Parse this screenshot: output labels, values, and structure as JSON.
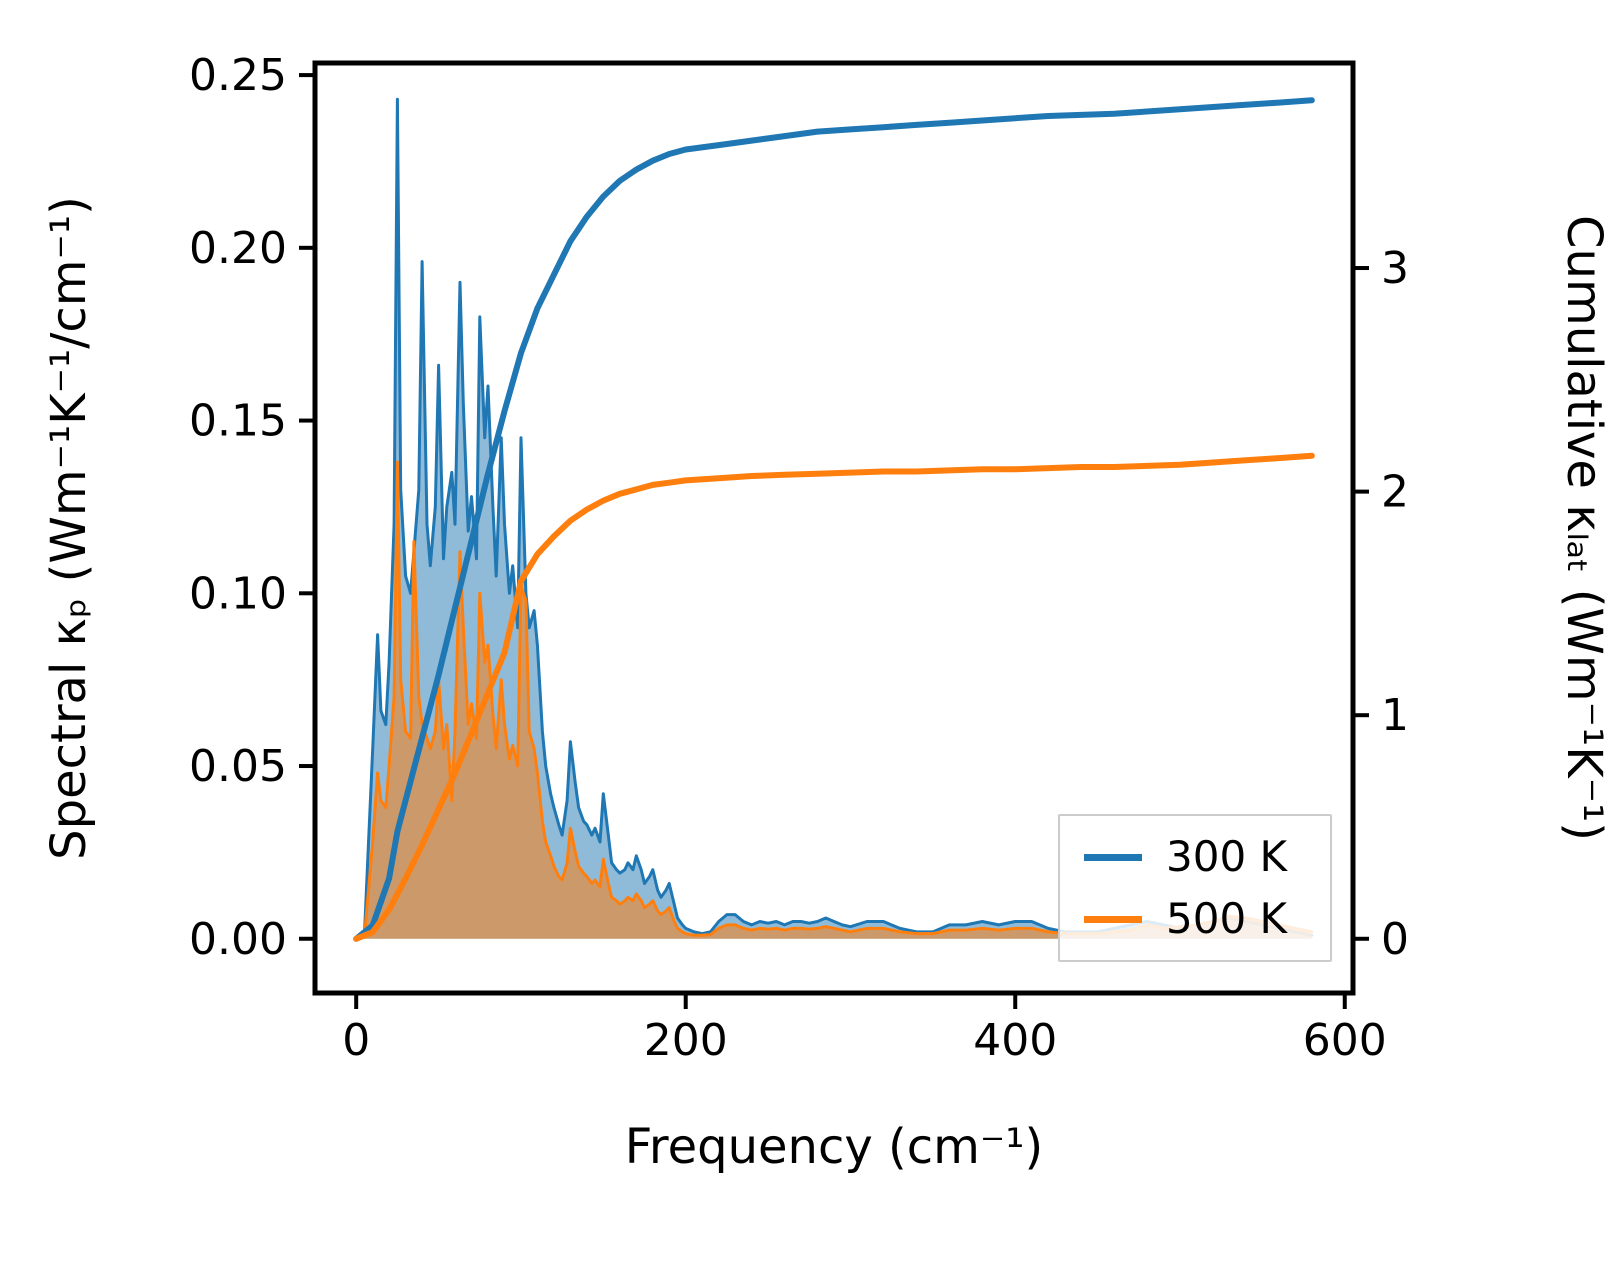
{
  "chart_data": {
    "type": "area",
    "title": "",
    "xlabel": "Frequency (cm⁻¹)",
    "ylabel_left": "Spectral κₚ (Wm⁻¹K⁻¹/cm⁻¹)",
    "ylabel_right": "Cumulative κₗₐₜ (Wm⁻¹K⁻¹)",
    "grid": false,
    "xlim": [
      -25,
      605
    ],
    "ylim_left": [
      -0.0157,
      0.2535
    ],
    "ylim_right": [
      -0.2425,
      3.917
    ],
    "xticks": {
      "values": [
        0,
        200,
        400,
        600
      ],
      "labels": [
        "0",
        "200",
        "400",
        "600"
      ]
    },
    "yticks_left": {
      "values": [
        0.0,
        0.05,
        0.1,
        0.15,
        0.2,
        0.25
      ],
      "labels": [
        "0.00",
        "0.05",
        "0.10",
        "0.15",
        "0.20",
        "0.25"
      ]
    },
    "yticks_right": {
      "values": [
        0,
        1,
        2,
        3
      ],
      "labels": [
        "0",
        "1",
        "2",
        "3"
      ]
    },
    "legend": {
      "position": "lower right",
      "entries": [
        {
          "label": "300 K",
          "color": "#1f77b4"
        },
        {
          "label": "500 K",
          "color": "#ff7f0e"
        }
      ]
    },
    "series": [
      {
        "name": "spectral-300K",
        "axis": "left",
        "style": "area",
        "color": "#1f77b4",
        "fill_opacity": 0.5,
        "x": [
          0,
          5,
          10,
          13,
          15,
          18,
          20,
          23,
          25,
          27,
          30,
          33,
          35,
          38,
          40,
          43,
          45,
          48,
          50,
          53,
          55,
          58,
          60,
          63,
          65,
          68,
          70,
          73,
          75,
          78,
          80,
          83,
          85,
          88,
          90,
          93,
          95,
          98,
          100,
          103,
          105,
          108,
          110,
          113,
          115,
          118,
          120,
          123,
          125,
          128,
          130,
          133,
          135,
          138,
          140,
          143,
          145,
          148,
          150,
          153,
          155,
          158,
          160,
          163,
          165,
          168,
          170,
          173,
          175,
          178,
          180,
          183,
          185,
          188,
          190,
          193,
          195,
          198,
          200,
          205,
          210,
          215,
          220,
          225,
          230,
          235,
          240,
          245,
          250,
          255,
          260,
          265,
          270,
          275,
          280,
          285,
          290,
          295,
          300,
          310,
          320,
          330,
          340,
          350,
          360,
          370,
          380,
          390,
          400,
          410,
          420,
          430,
          440,
          450,
          460,
          470,
          480,
          490,
          500,
          510,
          520,
          530,
          540,
          550,
          560,
          570,
          580
        ],
        "y": [
          0,
          0.001,
          0.055,
          0.088,
          0.066,
          0.062,
          0.08,
          0.12,
          0.243,
          0.13,
          0.105,
          0.1,
          0.112,
          0.13,
          0.196,
          0.12,
          0.108,
          0.125,
          0.166,
          0.11,
          0.125,
          0.135,
          0.12,
          0.19,
          0.155,
          0.118,
          0.128,
          0.11,
          0.18,
          0.145,
          0.16,
          0.125,
          0.105,
          0.145,
          0.12,
          0.1,
          0.108,
          0.09,
          0.145,
          0.1,
          0.09,
          0.095,
          0.085,
          0.06,
          0.05,
          0.042,
          0.038,
          0.033,
          0.03,
          0.04,
          0.057,
          0.045,
          0.038,
          0.034,
          0.033,
          0.03,
          0.032,
          0.028,
          0.042,
          0.03,
          0.022,
          0.02,
          0.019,
          0.02,
          0.022,
          0.02,
          0.024,
          0.02,
          0.016,
          0.018,
          0.02,
          0.014,
          0.012,
          0.014,
          0.016,
          0.01,
          0.006,
          0.004,
          0.003,
          0.002,
          0.0015,
          0.002,
          0.005,
          0.007,
          0.007,
          0.005,
          0.004,
          0.005,
          0.0045,
          0.005,
          0.004,
          0.005,
          0.005,
          0.0045,
          0.005,
          0.006,
          0.005,
          0.004,
          0.0035,
          0.005,
          0.005,
          0.003,
          0.002,
          0.002,
          0.004,
          0.004,
          0.005,
          0.004,
          0.005,
          0.005,
          0.003,
          0.002,
          0.002,
          0.002,
          0.003,
          0.004,
          0.005,
          0.004,
          0.003,
          0.004,
          0.005,
          0.006,
          0.005,
          0.004,
          0.003,
          0.002,
          0.001
        ]
      },
      {
        "name": "spectral-500K",
        "axis": "left",
        "style": "area",
        "color": "#ff7f0e",
        "fill_opacity": 0.55,
        "x": [
          0,
          5,
          10,
          13,
          15,
          18,
          20,
          23,
          25,
          27,
          30,
          33,
          35,
          38,
          40,
          43,
          45,
          48,
          50,
          53,
          55,
          58,
          60,
          63,
          65,
          68,
          70,
          73,
          75,
          78,
          80,
          83,
          85,
          88,
          90,
          93,
          95,
          98,
          100,
          103,
          105,
          108,
          110,
          113,
          115,
          118,
          120,
          123,
          125,
          128,
          130,
          133,
          135,
          138,
          140,
          143,
          145,
          148,
          150,
          153,
          155,
          158,
          160,
          163,
          165,
          168,
          170,
          173,
          175,
          178,
          180,
          183,
          185,
          188,
          190,
          193,
          195,
          198,
          200,
          205,
          210,
          215,
          220,
          225,
          230,
          235,
          240,
          245,
          250,
          255,
          260,
          265,
          270,
          275,
          280,
          285,
          290,
          295,
          300,
          310,
          320,
          330,
          340,
          350,
          360,
          370,
          380,
          390,
          400,
          410,
          420,
          430,
          440,
          450,
          460,
          470,
          480,
          490,
          500,
          510,
          520,
          530,
          540,
          550,
          560,
          570,
          580
        ],
        "y": [
          0,
          0.0005,
          0.028,
          0.048,
          0.04,
          0.038,
          0.05,
          0.07,
          0.138,
          0.075,
          0.06,
          0.058,
          0.115,
          0.07,
          0.062,
          0.058,
          0.055,
          0.06,
          0.075,
          0.055,
          0.062,
          0.04,
          0.06,
          0.112,
          0.09,
          0.062,
          0.068,
          0.058,
          0.1,
          0.08,
          0.085,
          0.065,
          0.055,
          0.075,
          0.062,
          0.052,
          0.056,
          0.05,
          0.102,
          0.098,
          0.06,
          0.055,
          0.048,
          0.034,
          0.028,
          0.024,
          0.021,
          0.018,
          0.017,
          0.022,
          0.032,
          0.025,
          0.021,
          0.019,
          0.018,
          0.016,
          0.017,
          0.015,
          0.023,
          0.016,
          0.012,
          0.011,
          0.01,
          0.011,
          0.012,
          0.011,
          0.013,
          0.011,
          0.009,
          0.01,
          0.011,
          0.008,
          0.007,
          0.008,
          0.009,
          0.005,
          0.003,
          0.002,
          0.0015,
          0.001,
          0.001,
          0.0012,
          0.003,
          0.004,
          0.004,
          0.003,
          0.0025,
          0.003,
          0.0028,
          0.003,
          0.0025,
          0.003,
          0.003,
          0.0028,
          0.003,
          0.0035,
          0.003,
          0.0025,
          0.002,
          0.003,
          0.003,
          0.002,
          0.0015,
          0.0015,
          0.0025,
          0.0025,
          0.003,
          0.0025,
          0.003,
          0.003,
          0.002,
          0.0015,
          0.0015,
          0.0015,
          0.002,
          0.0025,
          0.004,
          0.003,
          0.0035,
          0.004,
          0.005,
          0.0065,
          0.006,
          0.005,
          0.004,
          0.003,
          0.002
        ]
      },
      {
        "name": "cumulative-300K",
        "axis": "right",
        "style": "line",
        "color": "#1f77b4",
        "x": [
          0,
          10,
          20,
          25,
          30,
          40,
          50,
          60,
          70,
          80,
          90,
          100,
          110,
          120,
          130,
          140,
          150,
          160,
          170,
          180,
          190,
          200,
          220,
          240,
          260,
          280,
          300,
          320,
          340,
          360,
          380,
          400,
          420,
          440,
          460,
          480,
          500,
          520,
          540,
          560,
          580
        ],
        "y": [
          0,
          0.06,
          0.27,
          0.48,
          0.62,
          0.9,
          1.18,
          1.48,
          1.78,
          2.08,
          2.36,
          2.62,
          2.82,
          2.97,
          3.12,
          3.23,
          3.32,
          3.39,
          3.44,
          3.48,
          3.51,
          3.53,
          3.55,
          3.57,
          3.59,
          3.61,
          3.62,
          3.63,
          3.64,
          3.65,
          3.66,
          3.67,
          3.68,
          3.685,
          3.69,
          3.7,
          3.71,
          3.72,
          3.73,
          3.74,
          3.75
        ]
      },
      {
        "name": "cumulative-500K",
        "axis": "right",
        "style": "line",
        "color": "#ff7f0e",
        "x": [
          0,
          10,
          20,
          25,
          30,
          40,
          50,
          60,
          70,
          80,
          90,
          100,
          110,
          120,
          130,
          140,
          150,
          160,
          170,
          180,
          190,
          200,
          220,
          240,
          260,
          280,
          300,
          320,
          340,
          360,
          380,
          400,
          420,
          440,
          460,
          480,
          500,
          520,
          540,
          560,
          580
        ],
        "y": [
          0,
          0.03,
          0.13,
          0.2,
          0.27,
          0.42,
          0.58,
          0.74,
          0.92,
          1.1,
          1.28,
          1.6,
          1.72,
          1.8,
          1.87,
          1.92,
          1.96,
          1.99,
          2.01,
          2.03,
          2.04,
          2.05,
          2.06,
          2.07,
          2.075,
          2.08,
          2.085,
          2.09,
          2.09,
          2.095,
          2.1,
          2.1,
          2.105,
          2.11,
          2.11,
          2.115,
          2.12,
          2.13,
          2.14,
          2.15,
          2.16
        ]
      }
    ]
  }
}
